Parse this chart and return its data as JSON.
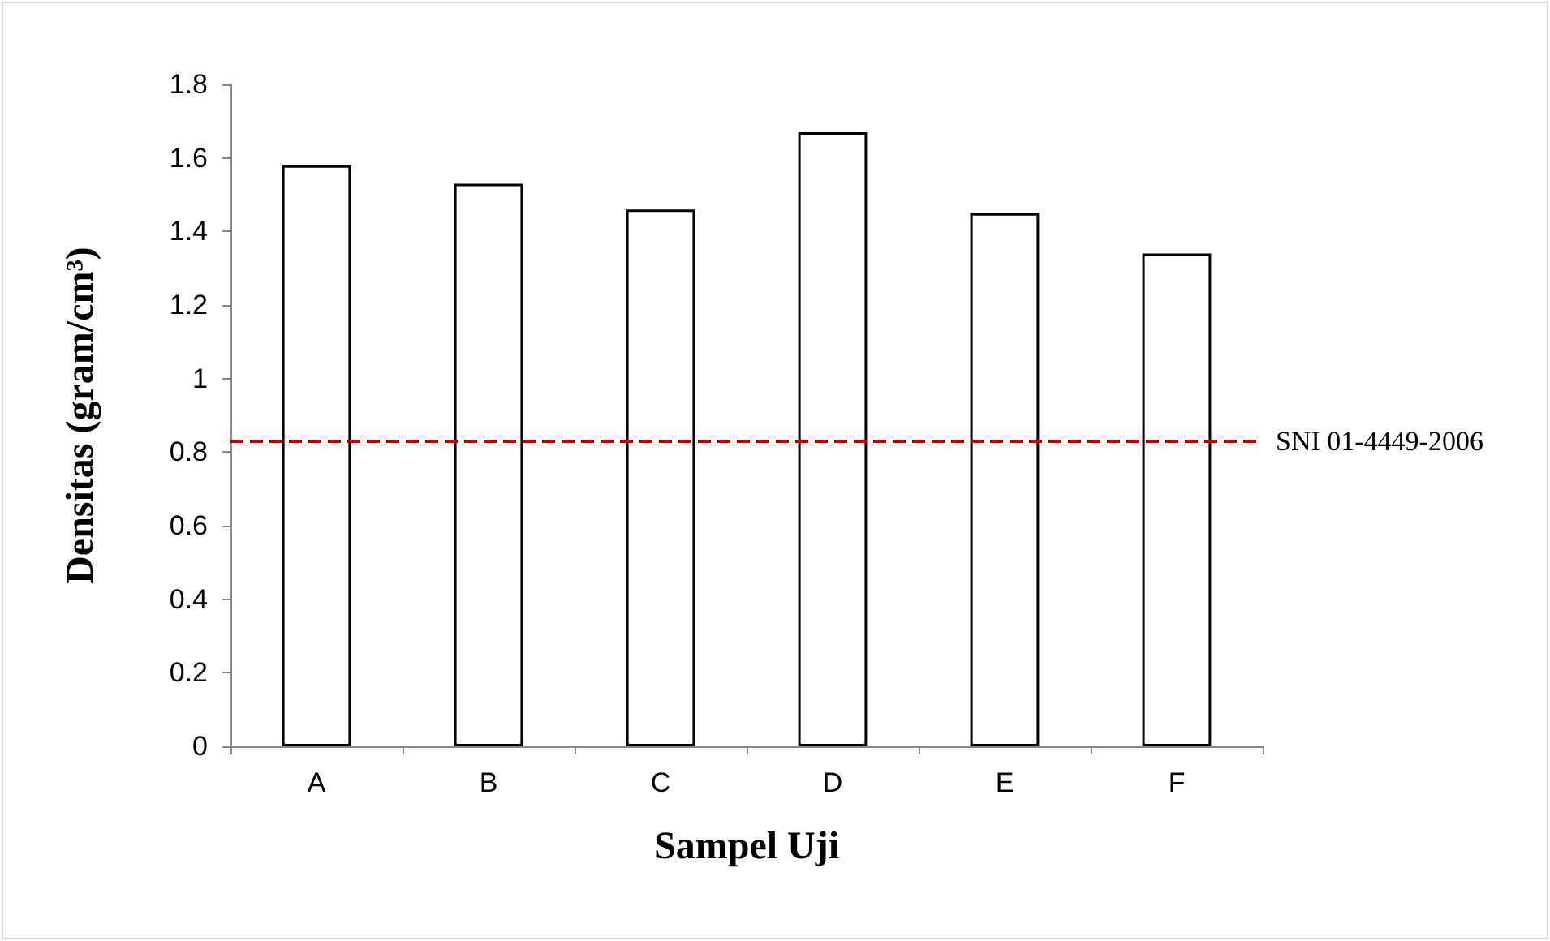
{
  "chart_data": {
    "type": "bar",
    "xlabel": "Sampel Uji",
    "ylabel": "Densitas (gram/cm³)",
    "categories": [
      "A",
      "B",
      "C",
      "D",
      "E",
      "F"
    ],
    "values": [
      1.58,
      1.53,
      1.46,
      1.67,
      1.45,
      1.34
    ],
    "color": "#ffffff",
    "ylim": [
      0,
      1.8
    ],
    "yticks": [
      0,
      0.2,
      0.4,
      0.6,
      0.8,
      1,
      1.2,
      1.4,
      1.6,
      1.8
    ],
    "ref_lines": [
      {
        "axis": "y",
        "value": 0.83,
        "label": "SNI 01-4449-2006",
        "color": "#c00000",
        "line_style": "dashed"
      }
    ]
  }
}
